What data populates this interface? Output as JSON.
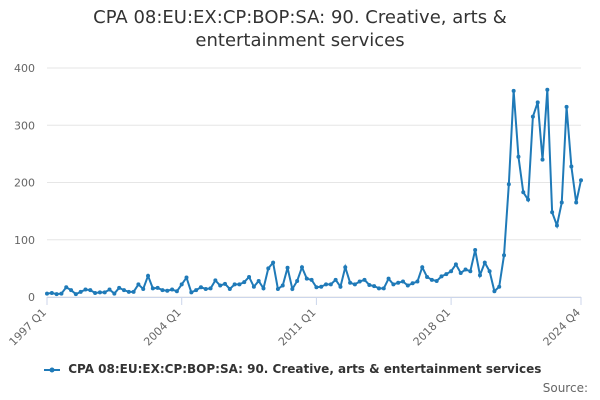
{
  "chart_data": {
    "type": "line",
    "title": "CPA 08:EU:EX:CP:BOP:SA: 90. Creative, arts & entertainment services",
    "categories": [
      "1997 Q1",
      null,
      null,
      null,
      null,
      null,
      null,
      null,
      null,
      null,
      null,
      null,
      null,
      null,
      null,
      null,
      null,
      null,
      null,
      null,
      null,
      null,
      null,
      null,
      null,
      null,
      null,
      null,
      "2004 Q1",
      null,
      null,
      null,
      null,
      null,
      null,
      null,
      null,
      null,
      null,
      null,
      null,
      null,
      null,
      null,
      null,
      null,
      null,
      null,
      null,
      null,
      null,
      null,
      null,
      null,
      null,
      null,
      "2011 Q1",
      null,
      null,
      null,
      null,
      null,
      null,
      null,
      null,
      null,
      null,
      null,
      null,
      null,
      null,
      null,
      null,
      null,
      null,
      null,
      null,
      null,
      null,
      null,
      null,
      null,
      null,
      null,
      "2018 Q1",
      null,
      null,
      null,
      null,
      null,
      null,
      null,
      null,
      null,
      null,
      null,
      null,
      null,
      null,
      null,
      null,
      null,
      null,
      null,
      null,
      null,
      null,
      null,
      null,
      null,
      null,
      "2024 Q4"
    ],
    "series": [
      {
        "name": "CPA 08:EU:EX:CP:BOP:SA: 90. Creative, arts & entertainment services",
        "color": "#1f7ab8",
        "values": [
          6,
          7,
          5,
          6,
          17,
          12,
          5,
          9,
          13,
          12,
          7,
          8,
          8,
          13,
          6,
          16,
          12,
          9,
          9,
          22,
          14,
          37,
          15,
          16,
          12,
          11,
          13,
          10,
          22,
          34,
          8,
          12,
          17,
          14,
          15,
          29,
          20,
          23,
          14,
          22,
          22,
          26,
          35,
          18,
          28,
          15,
          50,
          60,
          14,
          20,
          51,
          14,
          28,
          52,
          32,
          30,
          17,
          18,
          22,
          22,
          30,
          18,
          52,
          25,
          22,
          27,
          30,
          21,
          19,
          15,
          15,
          32,
          22,
          25,
          27,
          20,
          24,
          27,
          52,
          35,
          30,
          28,
          36,
          40,
          45,
          57,
          42,
          48,
          45,
          82,
          38,
          60,
          45,
          10,
          18,
          73,
          197,
          360,
          245,
          183,
          170,
          315,
          340,
          240,
          362,
          148,
          125,
          165,
          332,
          228,
          165,
          204
        ]
      }
    ],
    "ylim": [
      0,
      400
    ],
    "yticks": [
      0,
      100,
      200,
      300,
      400
    ],
    "grid": true,
    "source": "Source:"
  }
}
